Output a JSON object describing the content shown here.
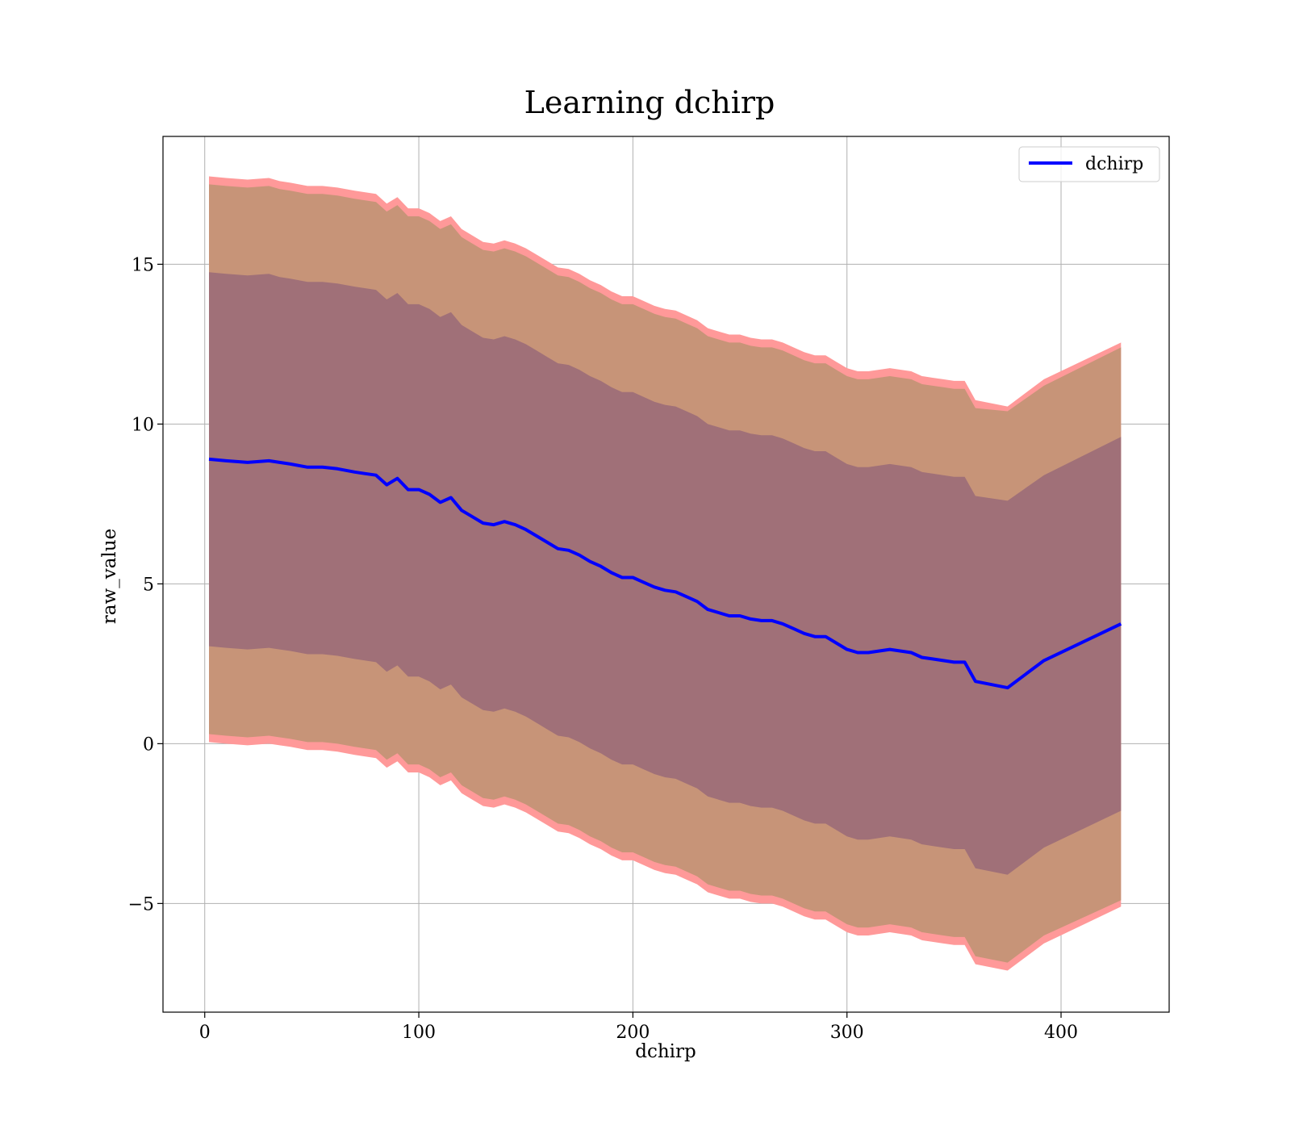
{
  "colors": {
    "line": "#0000ff",
    "band_outer": "#ff9999",
    "band_middle": "#c79478",
    "band_inner": "#a07078",
    "grid": "#b0b0b0",
    "legend_border": "#cccccc"
  },
  "chart_data": {
    "type": "area",
    "title": "Learning dchirp",
    "xlabel": "dchirp",
    "ylabel": "raw_value",
    "xlim": [
      -19.5,
      450.5
    ],
    "ylim": [
      -8.4,
      19
    ],
    "x_ticks": [
      0,
      100,
      200,
      300,
      400
    ],
    "x_tick_labels": [
      "0",
      "100",
      "200",
      "300",
      "400"
    ],
    "y_ticks": [
      -5,
      0,
      5,
      10,
      15
    ],
    "y_tick_labels": [
      "−5",
      "0",
      "5",
      "10",
      "15"
    ],
    "grid": true,
    "legend_position": "top-right",
    "series": [
      {
        "name": "dchirp",
        "x": [
          2,
          10,
          20,
          30,
          35,
          40,
          48,
          55,
          62,
          70,
          75,
          80,
          85,
          90,
          95,
          100,
          105,
          110,
          115,
          120,
          125,
          130,
          135,
          140,
          145,
          150,
          155,
          160,
          165,
          170,
          175,
          180,
          185,
          190,
          195,
          200,
          205,
          210,
          215,
          220,
          225,
          230,
          235,
          240,
          245,
          250,
          255,
          260,
          265,
          270,
          275,
          280,
          285,
          290,
          295,
          300,
          305,
          310,
          320,
          330,
          335,
          340,
          345,
          350,
          355,
          360,
          375,
          392,
          428
        ],
        "values": [
          8.9,
          8.85,
          8.8,
          8.85,
          8.8,
          8.75,
          8.65,
          8.65,
          8.6,
          8.5,
          8.45,
          8.4,
          8.1,
          8.3,
          7.95,
          7.95,
          7.8,
          7.55,
          7.7,
          7.3,
          7.1,
          6.9,
          6.85,
          6.95,
          6.85,
          6.7,
          6.5,
          6.3,
          6.1,
          6.05,
          5.9,
          5.7,
          5.55,
          5.35,
          5.2,
          5.2,
          5.05,
          4.9,
          4.8,
          4.75,
          4.6,
          4.45,
          4.2,
          4.1,
          4.0,
          4.0,
          3.9,
          3.85,
          3.85,
          3.75,
          3.6,
          3.45,
          3.35,
          3.35,
          3.15,
          2.95,
          2.85,
          2.85,
          2.95,
          2.85,
          2.7,
          2.65,
          2.6,
          2.55,
          2.55,
          1.95,
          1.75,
          2.6,
          3.75
        ]
      }
    ],
    "bands": [
      {
        "role": "outer",
        "x": [
          2,
          10,
          20,
          30,
          35,
          40,
          48,
          55,
          62,
          70,
          75,
          80,
          85,
          90,
          95,
          100,
          105,
          110,
          115,
          120,
          125,
          130,
          135,
          140,
          145,
          150,
          155,
          160,
          165,
          170,
          175,
          180,
          185,
          190,
          195,
          200,
          205,
          210,
          215,
          220,
          225,
          230,
          235,
          240,
          245,
          250,
          255,
          260,
          265,
          270,
          275,
          280,
          285,
          290,
          295,
          300,
          305,
          310,
          320,
          330,
          335,
          340,
          345,
          350,
          355,
          360,
          375,
          392,
          428
        ],
        "upper": [
          17.75,
          17.7,
          17.65,
          17.7,
          17.6,
          17.55,
          17.45,
          17.45,
          17.4,
          17.3,
          17.25,
          17.2,
          16.9,
          17.1,
          16.75,
          16.75,
          16.6,
          16.35,
          16.5,
          16.1,
          15.9,
          15.7,
          15.65,
          15.75,
          15.65,
          15.5,
          15.3,
          15.1,
          14.9,
          14.85,
          14.7,
          14.5,
          14.35,
          14.15,
          14.0,
          14.0,
          13.85,
          13.7,
          13.6,
          13.55,
          13.4,
          13.25,
          13.0,
          12.9,
          12.8,
          12.8,
          12.7,
          12.65,
          12.65,
          12.55,
          12.4,
          12.25,
          12.15,
          12.15,
          11.95,
          11.75,
          11.65,
          11.65,
          11.75,
          11.65,
          11.5,
          11.45,
          11.4,
          11.35,
          11.35,
          10.75,
          10.55,
          11.4,
          12.55
        ],
        "lower": [
          0.05,
          0.0,
          -0.05,
          0.0,
          -0.05,
          -0.1,
          -0.2,
          -0.2,
          -0.25,
          -0.35,
          -0.4,
          -0.45,
          -0.75,
          -0.55,
          -0.9,
          -0.9,
          -1.05,
          -1.3,
          -1.15,
          -1.55,
          -1.75,
          -1.95,
          -2.0,
          -1.9,
          -2.0,
          -2.15,
          -2.35,
          -2.55,
          -2.75,
          -2.8,
          -2.95,
          -3.15,
          -3.3,
          -3.5,
          -3.65,
          -3.65,
          -3.8,
          -3.95,
          -4.05,
          -4.1,
          -4.25,
          -4.4,
          -4.65,
          -4.75,
          -4.85,
          -4.85,
          -4.95,
          -5.0,
          -5.0,
          -5.1,
          -5.25,
          -5.4,
          -5.5,
          -5.5,
          -5.7,
          -5.9,
          -6.0,
          -6.0,
          -5.9,
          -6.0,
          -6.15,
          -6.2,
          -6.25,
          -6.3,
          -6.3,
          -6.9,
          -7.1,
          -6.25,
          -5.1
        ]
      },
      {
        "role": "middle",
        "x": [
          2,
          10,
          20,
          30,
          35,
          40,
          48,
          55,
          62,
          70,
          75,
          80,
          85,
          90,
          95,
          100,
          105,
          110,
          115,
          120,
          125,
          130,
          135,
          140,
          145,
          150,
          155,
          160,
          165,
          170,
          175,
          180,
          185,
          190,
          195,
          200,
          205,
          210,
          215,
          220,
          225,
          230,
          235,
          240,
          245,
          250,
          255,
          260,
          265,
          270,
          275,
          280,
          285,
          290,
          295,
          300,
          305,
          310,
          320,
          330,
          335,
          340,
          345,
          350,
          355,
          360,
          375,
          392,
          428
        ],
        "upper": [
          17.5,
          17.45,
          17.4,
          17.45,
          17.35,
          17.3,
          17.2,
          17.2,
          17.15,
          17.05,
          17.0,
          16.95,
          16.65,
          16.85,
          16.5,
          16.5,
          16.35,
          16.1,
          16.25,
          15.85,
          15.65,
          15.45,
          15.4,
          15.5,
          15.4,
          15.25,
          15.05,
          14.85,
          14.65,
          14.6,
          14.45,
          14.25,
          14.1,
          13.9,
          13.75,
          13.75,
          13.6,
          13.45,
          13.35,
          13.3,
          13.15,
          13.0,
          12.75,
          12.65,
          12.55,
          12.55,
          12.45,
          12.4,
          12.4,
          12.3,
          12.15,
          12.0,
          11.9,
          11.9,
          11.7,
          11.5,
          11.4,
          11.4,
          11.5,
          11.4,
          11.25,
          11.2,
          11.15,
          11.1,
          11.1,
          10.5,
          10.4,
          11.2,
          12.4
        ],
        "lower": [
          0.3,
          0.25,
          0.2,
          0.25,
          0.2,
          0.15,
          0.05,
          0.05,
          0.0,
          -0.1,
          -0.15,
          -0.2,
          -0.5,
          -0.3,
          -0.65,
          -0.65,
          -0.8,
          -1.05,
          -0.9,
          -1.3,
          -1.5,
          -1.7,
          -1.75,
          -1.65,
          -1.75,
          -1.9,
          -2.1,
          -2.3,
          -2.5,
          -2.55,
          -2.7,
          -2.9,
          -3.05,
          -3.25,
          -3.4,
          -3.4,
          -3.55,
          -3.7,
          -3.8,
          -3.85,
          -4.0,
          -4.15,
          -4.4,
          -4.5,
          -4.6,
          -4.6,
          -4.7,
          -4.75,
          -4.75,
          -4.85,
          -5.0,
          -5.15,
          -5.25,
          -5.25,
          -5.45,
          -5.65,
          -5.75,
          -5.75,
          -5.65,
          -5.75,
          -5.9,
          -5.95,
          -6.0,
          -6.05,
          -6.05,
          -6.65,
          -6.85,
          -6.0,
          -4.9
        ]
      },
      {
        "role": "inner",
        "x": [
          2,
          10,
          20,
          30,
          35,
          40,
          48,
          55,
          62,
          70,
          75,
          80,
          85,
          90,
          95,
          100,
          105,
          110,
          115,
          120,
          125,
          130,
          135,
          140,
          145,
          150,
          155,
          160,
          165,
          170,
          175,
          180,
          185,
          190,
          195,
          200,
          205,
          210,
          215,
          220,
          225,
          230,
          235,
          240,
          245,
          250,
          255,
          260,
          265,
          270,
          275,
          280,
          285,
          290,
          295,
          300,
          305,
          310,
          320,
          330,
          335,
          340,
          345,
          350,
          355,
          360,
          375,
          392,
          428
        ],
        "upper": [
          14.75,
          14.7,
          14.65,
          14.7,
          14.6,
          14.55,
          14.45,
          14.45,
          14.4,
          14.3,
          14.25,
          14.2,
          13.9,
          14.1,
          13.75,
          13.75,
          13.6,
          13.35,
          13.5,
          13.1,
          12.9,
          12.7,
          12.65,
          12.75,
          12.65,
          12.5,
          12.3,
          12.1,
          11.9,
          11.85,
          11.7,
          11.5,
          11.35,
          11.15,
          11.0,
          11.0,
          10.85,
          10.7,
          10.6,
          10.55,
          10.4,
          10.25,
          10.0,
          9.9,
          9.8,
          9.8,
          9.7,
          9.65,
          9.65,
          9.55,
          9.4,
          9.25,
          9.15,
          9.15,
          8.95,
          8.75,
          8.65,
          8.65,
          8.75,
          8.65,
          8.5,
          8.45,
          8.4,
          8.35,
          8.35,
          7.75,
          7.6,
          8.4,
          9.6
        ],
        "lower": [
          3.05,
          3.0,
          2.95,
          3.0,
          2.95,
          2.9,
          2.8,
          2.8,
          2.75,
          2.65,
          2.6,
          2.55,
          2.25,
          2.45,
          2.1,
          2.1,
          1.95,
          1.7,
          1.85,
          1.45,
          1.25,
          1.05,
          1.0,
          1.1,
          1.0,
          0.85,
          0.65,
          0.45,
          0.25,
          0.2,
          0.05,
          -0.15,
          -0.3,
          -0.5,
          -0.65,
          -0.65,
          -0.8,
          -0.95,
          -1.05,
          -1.1,
          -1.25,
          -1.4,
          -1.65,
          -1.75,
          -1.85,
          -1.85,
          -1.95,
          -2.0,
          -2.0,
          -2.1,
          -2.25,
          -2.4,
          -2.5,
          -2.5,
          -2.7,
          -2.9,
          -3.0,
          -3.0,
          -2.9,
          -3.0,
          -3.15,
          -3.2,
          -3.25,
          -3.3,
          -3.3,
          -3.9,
          -4.1,
          -3.25,
          -2.1
        ]
      }
    ]
  }
}
